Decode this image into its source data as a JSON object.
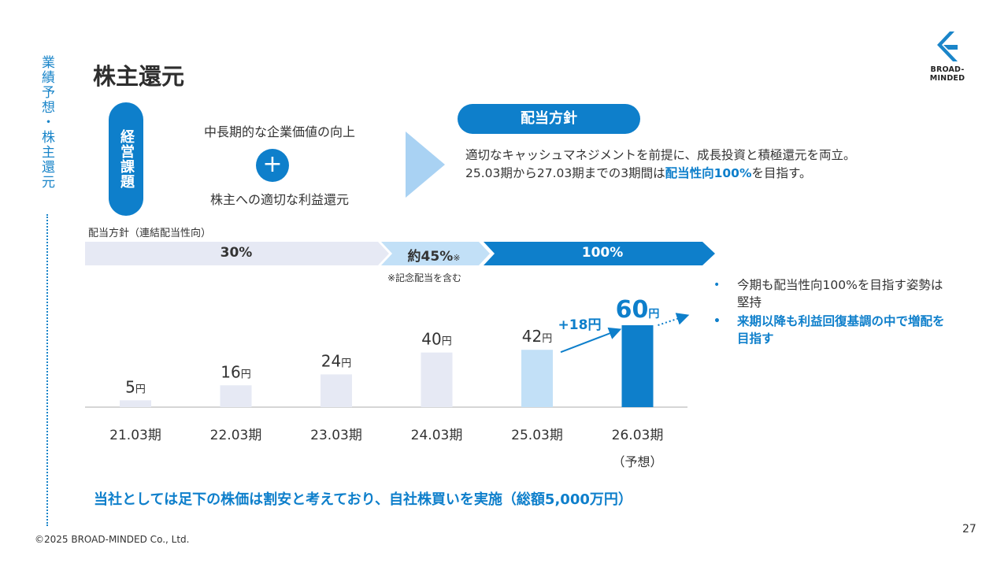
{
  "section": {
    "side_title": "業績予想・株主還元"
  },
  "page_title": "株主還元",
  "logo": {
    "text": "BROAD-MINDED",
    "color": "#1a85c9"
  },
  "issues": {
    "label": "経営課題",
    "line1": "中長期的な企業価値の向上",
    "plus": "+",
    "line2": "株主への適切な利益還元"
  },
  "policy": {
    "label": "配当方針",
    "line1": "適切なキャッシュマネジメントを前提に、成長投資と積極還元を両立。",
    "line2_prefix": "25.03期から27.03期までの3期間は",
    "line2_highlight": "配当性向100%",
    "line2_suffix": "を目指す。"
  },
  "payout_ratio": {
    "caption": "配当方針（連結配当性向）",
    "band1": "30%",
    "band2": "約45%",
    "band2_mark": "※",
    "band3": "100%",
    "note": "※記念配当を含む"
  },
  "chart_data": {
    "type": "bar",
    "categories": [
      "21.03期",
      "22.03期",
      "23.03期",
      "24.03期",
      "25.03期",
      "26.03期"
    ],
    "category_sublabels": [
      "",
      "",
      "",
      "",
      "",
      "（予想）"
    ],
    "values": [
      5,
      16,
      24,
      40,
      42,
      60
    ],
    "unit": "円",
    "bar_colors": [
      "#e6e9f4",
      "#e6e9f4",
      "#e6e9f4",
      "#e6e9f4",
      "#c2e0f7",
      "#0e7fcb"
    ],
    "increase_label": "+18円",
    "grid": false
  },
  "bullets": [
    "今期も配当性向100%を目指す姿勢は堅持",
    "来期以降も利益回復基調の中で増配を目指す"
  ],
  "buyback": "当社としては足下の株価は割安と考えており、自社株買いを実施（総額5,000万円）",
  "copyright": "©2025 BROAD-MINDED Co., Ltd.",
  "page_number": "27",
  "colors": {
    "accent": "#0e7fcb",
    "light_band": "#e6e9f4",
    "mid_band": "#c2e0f7",
    "text": "#333333"
  }
}
